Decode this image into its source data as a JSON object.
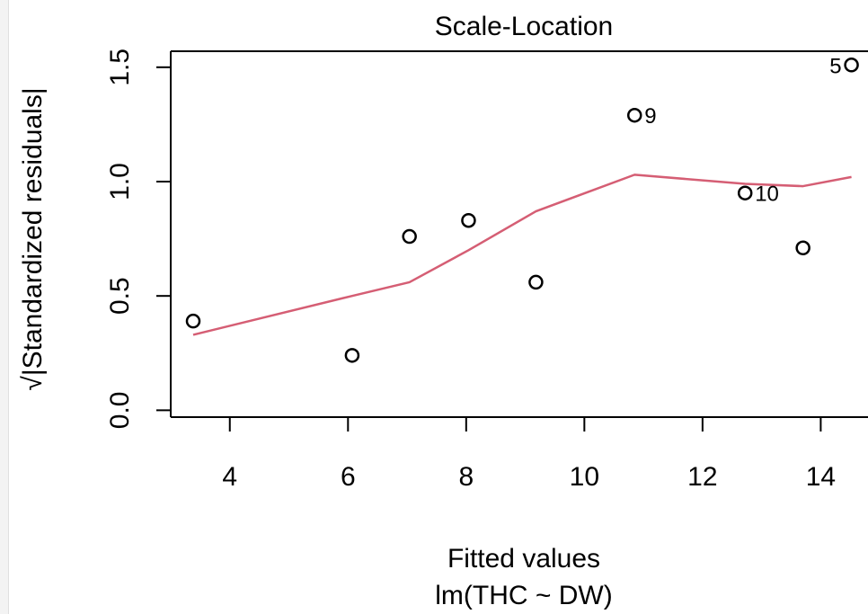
{
  "window": {
    "left_strip_color": "#f3f3f3"
  },
  "chart_data": {
    "type": "scatter",
    "title": "Scale-Location",
    "xlabel": "Fitted values",
    "ylabel": "√|Standardized residuals|",
    "subtitle": "lm(THC ~ DW)",
    "xlim": [
      3.0,
      14.8
    ],
    "ylim": [
      -0.03,
      1.57
    ],
    "x_ticks": [
      4,
      6,
      8,
      10,
      12,
      14
    ],
    "y_ticks": [
      0.0,
      0.5,
      1.0,
      1.5
    ],
    "x_tick_labels": [
      "4",
      "6",
      "8",
      "10",
      "12",
      "14"
    ],
    "y_tick_labels": [
      "0.0",
      "0.5",
      "1.0",
      "1.5"
    ],
    "grid": false,
    "points": [
      {
        "x": 3.38,
        "y": 0.39,
        "label": ""
      },
      {
        "x": 6.07,
        "y": 0.24,
        "label": ""
      },
      {
        "x": 7.04,
        "y": 0.76,
        "label": ""
      },
      {
        "x": 8.04,
        "y": 0.83,
        "label": ""
      },
      {
        "x": 9.18,
        "y": 0.56,
        "label": ""
      },
      {
        "x": 10.85,
        "y": 1.29,
        "label": "9"
      },
      {
        "x": 12.72,
        "y": 0.95,
        "label": "10"
      },
      {
        "x": 13.7,
        "y": 0.71,
        "label": ""
      },
      {
        "x": 14.52,
        "y": 1.51,
        "label": "5"
      }
    ],
    "smooth_line": {
      "color": "#d55e74",
      "x": [
        3.38,
        6.07,
        7.04,
        8.04,
        9.18,
        10.85,
        12.72,
        13.7,
        14.52
      ],
      "y": [
        0.33,
        0.5,
        0.56,
        0.7,
        0.87,
        1.03,
        0.99,
        0.98,
        1.02
      ]
    },
    "point_color": "#000000"
  }
}
